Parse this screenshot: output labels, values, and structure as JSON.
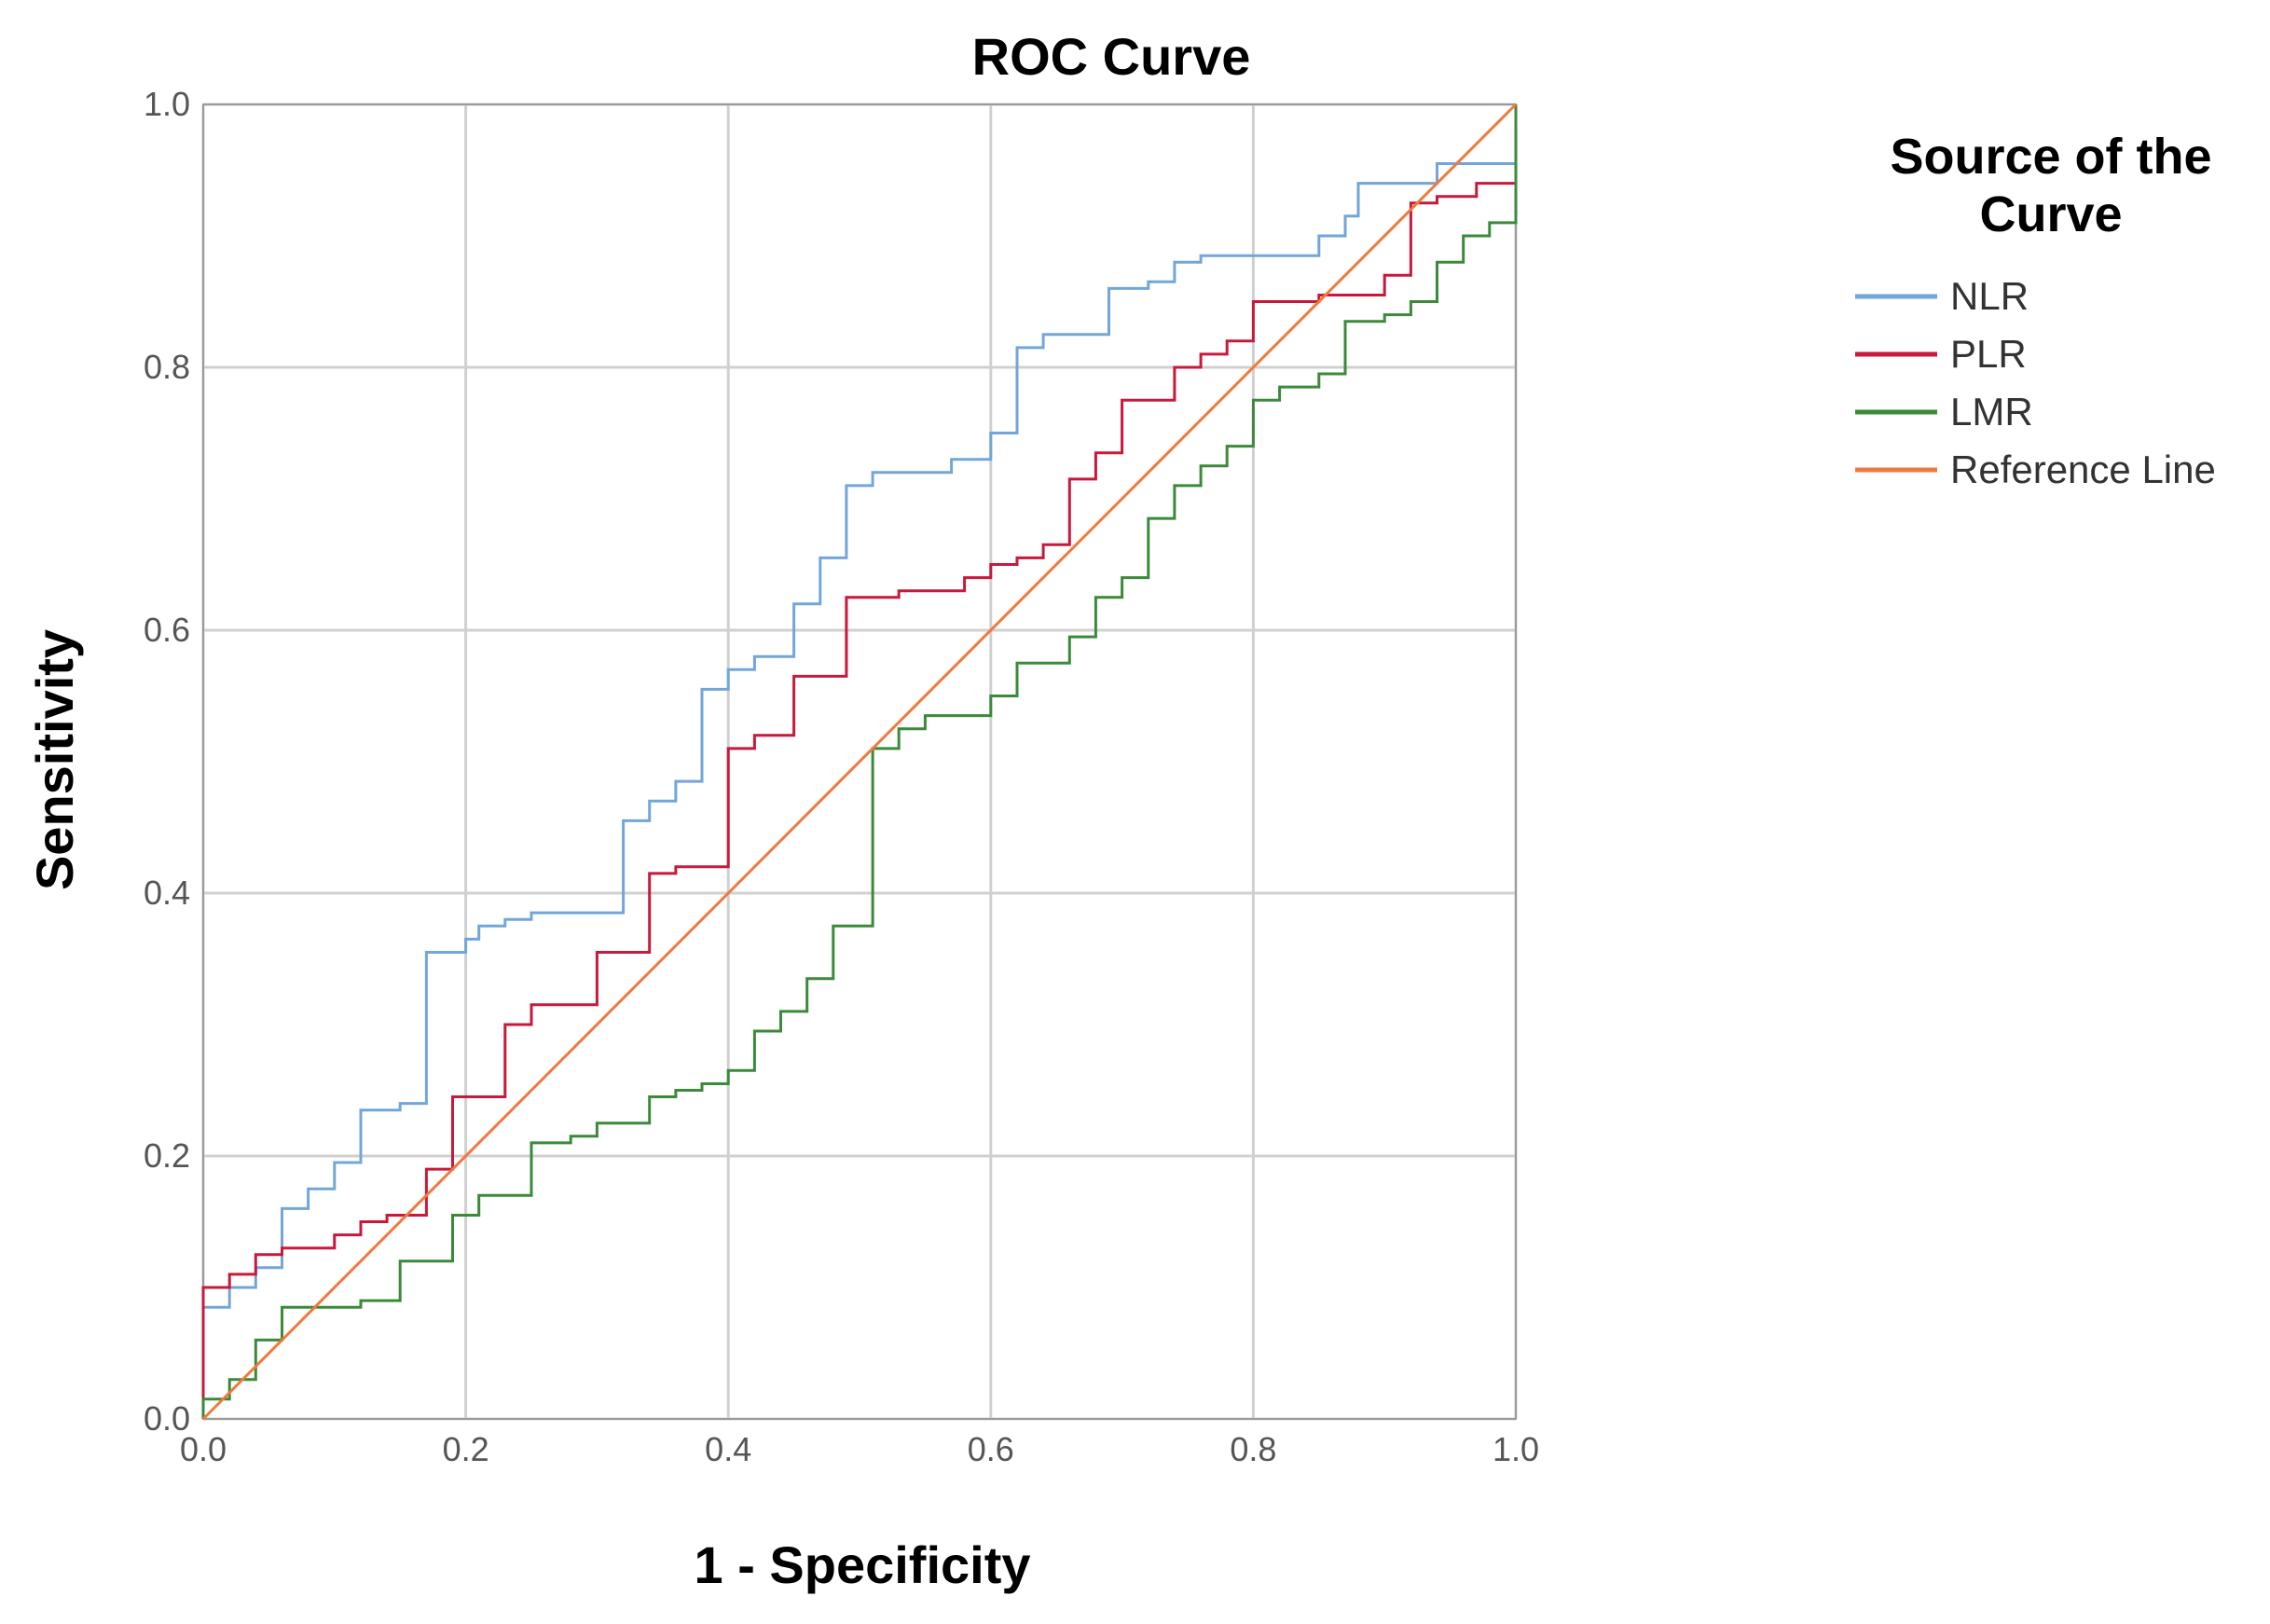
{
  "chart_data": {
    "type": "line",
    "title": "ROC Curve",
    "xlabel": "1 - Specificity",
    "ylabel": "Sensitivity",
    "xlim": [
      0,
      1
    ],
    "ylim": [
      0,
      1
    ],
    "xticks": [
      "0.0",
      "0.2",
      "0.4",
      "0.6",
      "0.8",
      "1.0"
    ],
    "yticks": [
      "0.0",
      "0.2",
      "0.4",
      "0.6",
      "0.8",
      "1.0"
    ],
    "grid": true,
    "legend": {
      "title_lines": [
        "Source of the",
        "Curve"
      ],
      "position": "right"
    },
    "series": [
      {
        "name": "NLR",
        "color": "#72a6d8",
        "points": [
          [
            0,
            0
          ],
          [
            0,
            0.085
          ],
          [
            0.02,
            0.085
          ],
          [
            0.02,
            0.1
          ],
          [
            0.04,
            0.1
          ],
          [
            0.04,
            0.115
          ],
          [
            0.06,
            0.115
          ],
          [
            0.06,
            0.16
          ],
          [
            0.08,
            0.16
          ],
          [
            0.08,
            0.175
          ],
          [
            0.1,
            0.175
          ],
          [
            0.1,
            0.195
          ],
          [
            0.12,
            0.195
          ],
          [
            0.12,
            0.235
          ],
          [
            0.15,
            0.235
          ],
          [
            0.15,
            0.24
          ],
          [
            0.17,
            0.24
          ],
          [
            0.17,
            0.355
          ],
          [
            0.2,
            0.355
          ],
          [
            0.2,
            0.365
          ],
          [
            0.21,
            0.365
          ],
          [
            0.21,
            0.375
          ],
          [
            0.23,
            0.375
          ],
          [
            0.23,
            0.38
          ],
          [
            0.25,
            0.38
          ],
          [
            0.25,
            0.385
          ],
          [
            0.32,
            0.385
          ],
          [
            0.32,
            0.455
          ],
          [
            0.34,
            0.455
          ],
          [
            0.34,
            0.47
          ],
          [
            0.36,
            0.47
          ],
          [
            0.36,
            0.485
          ],
          [
            0.38,
            0.485
          ],
          [
            0.38,
            0.555
          ],
          [
            0.4,
            0.555
          ],
          [
            0.4,
            0.57
          ],
          [
            0.42,
            0.57
          ],
          [
            0.42,
            0.58
          ],
          [
            0.45,
            0.58
          ],
          [
            0.45,
            0.62
          ],
          [
            0.47,
            0.62
          ],
          [
            0.47,
            0.655
          ],
          [
            0.49,
            0.655
          ],
          [
            0.49,
            0.71
          ],
          [
            0.51,
            0.71
          ],
          [
            0.51,
            0.72
          ],
          [
            0.57,
            0.72
          ],
          [
            0.57,
            0.73
          ],
          [
            0.6,
            0.73
          ],
          [
            0.6,
            0.75
          ],
          [
            0.62,
            0.75
          ],
          [
            0.62,
            0.815
          ],
          [
            0.64,
            0.815
          ],
          [
            0.64,
            0.825
          ],
          [
            0.69,
            0.825
          ],
          [
            0.69,
            0.86
          ],
          [
            0.72,
            0.86
          ],
          [
            0.72,
            0.865
          ],
          [
            0.74,
            0.865
          ],
          [
            0.74,
            0.88
          ],
          [
            0.76,
            0.88
          ],
          [
            0.76,
            0.885
          ],
          [
            0.85,
            0.885
          ],
          [
            0.85,
            0.9
          ],
          [
            0.87,
            0.9
          ],
          [
            0.87,
            0.915
          ],
          [
            0.88,
            0.915
          ],
          [
            0.88,
            0.94
          ],
          [
            0.94,
            0.94
          ],
          [
            0.94,
            0.955
          ],
          [
            1,
            0.955
          ],
          [
            1,
            1
          ]
        ]
      },
      {
        "name": "PLR",
        "color": "#c8193c",
        "points": [
          [
            0,
            0
          ],
          [
            0,
            0.1
          ],
          [
            0.02,
            0.1
          ],
          [
            0.02,
            0.11
          ],
          [
            0.04,
            0.11
          ],
          [
            0.04,
            0.125
          ],
          [
            0.06,
            0.125
          ],
          [
            0.06,
            0.13
          ],
          [
            0.1,
            0.13
          ],
          [
            0.1,
            0.14
          ],
          [
            0.12,
            0.14
          ],
          [
            0.12,
            0.15
          ],
          [
            0.14,
            0.15
          ],
          [
            0.14,
            0.155
          ],
          [
            0.17,
            0.155
          ],
          [
            0.17,
            0.19
          ],
          [
            0.19,
            0.19
          ],
          [
            0.19,
            0.245
          ],
          [
            0.23,
            0.245
          ],
          [
            0.23,
            0.3
          ],
          [
            0.25,
            0.3
          ],
          [
            0.25,
            0.315
          ],
          [
            0.3,
            0.315
          ],
          [
            0.3,
            0.355
          ],
          [
            0.34,
            0.355
          ],
          [
            0.34,
            0.415
          ],
          [
            0.36,
            0.415
          ],
          [
            0.36,
            0.42
          ],
          [
            0.4,
            0.42
          ],
          [
            0.4,
            0.51
          ],
          [
            0.42,
            0.51
          ],
          [
            0.42,
            0.52
          ],
          [
            0.45,
            0.52
          ],
          [
            0.45,
            0.565
          ],
          [
            0.49,
            0.565
          ],
          [
            0.49,
            0.625
          ],
          [
            0.53,
            0.625
          ],
          [
            0.53,
            0.63
          ],
          [
            0.58,
            0.63
          ],
          [
            0.58,
            0.64
          ],
          [
            0.6,
            0.64
          ],
          [
            0.6,
            0.65
          ],
          [
            0.62,
            0.65
          ],
          [
            0.62,
            0.655
          ],
          [
            0.64,
            0.655
          ],
          [
            0.64,
            0.665
          ],
          [
            0.66,
            0.665
          ],
          [
            0.66,
            0.715
          ],
          [
            0.68,
            0.715
          ],
          [
            0.68,
            0.735
          ],
          [
            0.7,
            0.735
          ],
          [
            0.7,
            0.775
          ],
          [
            0.74,
            0.775
          ],
          [
            0.74,
            0.8
          ],
          [
            0.76,
            0.8
          ],
          [
            0.76,
            0.81
          ],
          [
            0.78,
            0.81
          ],
          [
            0.78,
            0.82
          ],
          [
            0.8,
            0.82
          ],
          [
            0.8,
            0.85
          ],
          [
            0.85,
            0.85
          ],
          [
            0.85,
            0.855
          ],
          [
            0.9,
            0.855
          ],
          [
            0.9,
            0.87
          ],
          [
            0.92,
            0.87
          ],
          [
            0.92,
            0.925
          ],
          [
            0.94,
            0.925
          ],
          [
            0.94,
            0.93
          ],
          [
            0.97,
            0.93
          ],
          [
            0.97,
            0.94
          ],
          [
            1,
            0.94
          ],
          [
            1,
            1
          ]
        ]
      },
      {
        "name": "LMR",
        "color": "#3a8a3a",
        "points": [
          [
            0,
            0
          ],
          [
            0,
            0.015
          ],
          [
            0.02,
            0.015
          ],
          [
            0.02,
            0.03
          ],
          [
            0.04,
            0.03
          ],
          [
            0.04,
            0.06
          ],
          [
            0.06,
            0.06
          ],
          [
            0.06,
            0.085
          ],
          [
            0.12,
            0.085
          ],
          [
            0.12,
            0.09
          ],
          [
            0.15,
            0.09
          ],
          [
            0.15,
            0.12
          ],
          [
            0.19,
            0.12
          ],
          [
            0.19,
            0.155
          ],
          [
            0.21,
            0.155
          ],
          [
            0.21,
            0.17
          ],
          [
            0.25,
            0.17
          ],
          [
            0.25,
            0.21
          ],
          [
            0.28,
            0.21
          ],
          [
            0.28,
            0.215
          ],
          [
            0.3,
            0.215
          ],
          [
            0.3,
            0.225
          ],
          [
            0.34,
            0.225
          ],
          [
            0.34,
            0.245
          ],
          [
            0.36,
            0.245
          ],
          [
            0.36,
            0.25
          ],
          [
            0.38,
            0.25
          ],
          [
            0.38,
            0.255
          ],
          [
            0.4,
            0.255
          ],
          [
            0.4,
            0.265
          ],
          [
            0.42,
            0.265
          ],
          [
            0.42,
            0.295
          ],
          [
            0.44,
            0.295
          ],
          [
            0.44,
            0.31
          ],
          [
            0.46,
            0.31
          ],
          [
            0.46,
            0.335
          ],
          [
            0.48,
            0.335
          ],
          [
            0.48,
            0.375
          ],
          [
            0.51,
            0.375
          ],
          [
            0.51,
            0.51
          ],
          [
            0.53,
            0.51
          ],
          [
            0.53,
            0.525
          ],
          [
            0.55,
            0.525
          ],
          [
            0.55,
            0.535
          ],
          [
            0.6,
            0.535
          ],
          [
            0.6,
            0.55
          ],
          [
            0.62,
            0.55
          ],
          [
            0.62,
            0.575
          ],
          [
            0.66,
            0.575
          ],
          [
            0.66,
            0.595
          ],
          [
            0.68,
            0.595
          ],
          [
            0.68,
            0.625
          ],
          [
            0.7,
            0.625
          ],
          [
            0.7,
            0.64
          ],
          [
            0.72,
            0.64
          ],
          [
            0.72,
            0.685
          ],
          [
            0.74,
            0.685
          ],
          [
            0.74,
            0.71
          ],
          [
            0.76,
            0.71
          ],
          [
            0.76,
            0.725
          ],
          [
            0.78,
            0.725
          ],
          [
            0.78,
            0.74
          ],
          [
            0.8,
            0.74
          ],
          [
            0.8,
            0.775
          ],
          [
            0.82,
            0.775
          ],
          [
            0.82,
            0.785
          ],
          [
            0.85,
            0.785
          ],
          [
            0.85,
            0.795
          ],
          [
            0.87,
            0.795
          ],
          [
            0.87,
            0.835
          ],
          [
            0.9,
            0.835
          ],
          [
            0.9,
            0.84
          ],
          [
            0.92,
            0.84
          ],
          [
            0.92,
            0.85
          ],
          [
            0.94,
            0.85
          ],
          [
            0.94,
            0.88
          ],
          [
            0.96,
            0.88
          ],
          [
            0.96,
            0.9
          ],
          [
            0.98,
            0.9
          ],
          [
            0.98,
            0.91
          ],
          [
            1,
            0.91
          ],
          [
            1,
            1
          ]
        ]
      },
      {
        "name": "Reference Line",
        "color": "#f07a3c",
        "points": [
          [
            0,
            0
          ],
          [
            1,
            1
          ]
        ]
      }
    ]
  }
}
